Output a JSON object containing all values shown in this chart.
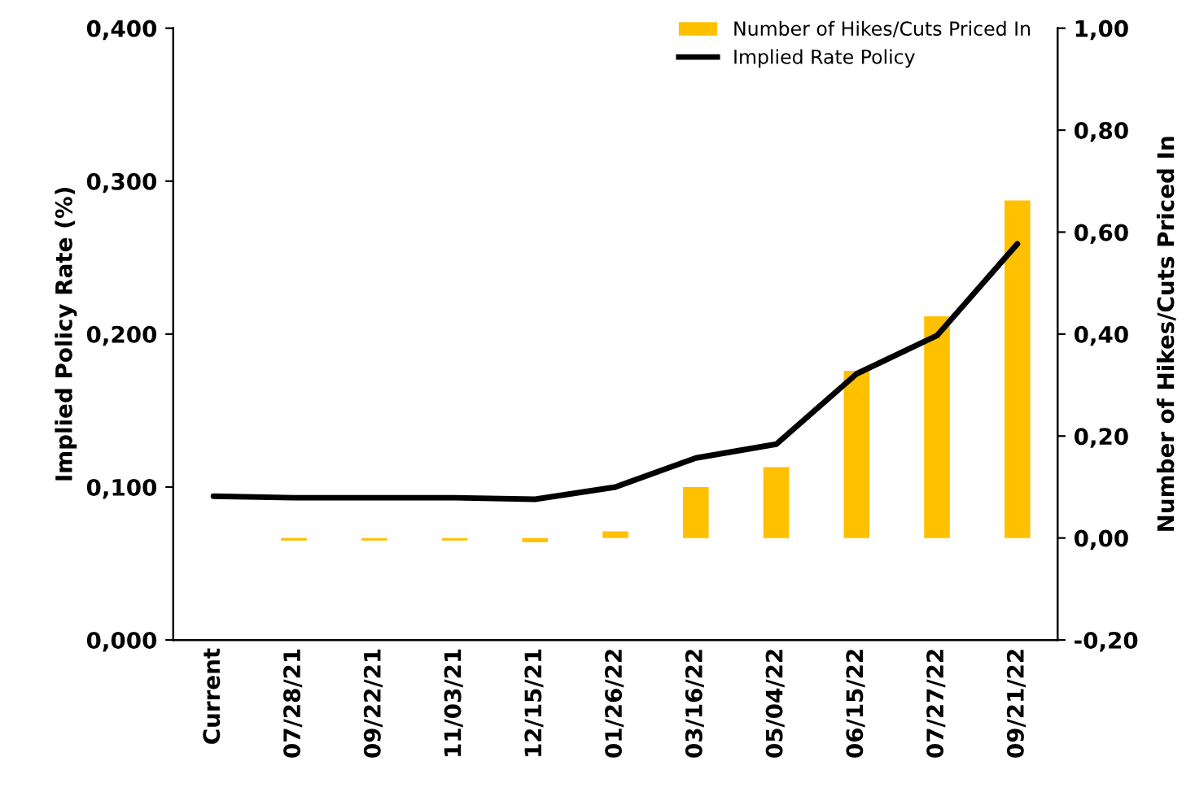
{
  "chart_data": {
    "type": "bar",
    "ylabel": "Implied Policy Rate (%)",
    "y2label": "Number of Hikes/Cuts Priced In",
    "categories": [
      "Current",
      "07/28/21",
      "09/22/21",
      "11/03/21",
      "12/15/21",
      "01/26/22",
      "03/16/22",
      "05/04/22",
      "06/15/22",
      "07/27/22",
      "09/21/22"
    ],
    "series": [
      {
        "name": "Number of Hikes/Cuts Priced In",
        "axis": "y2",
        "color": "#ffc000",
        "values": [
          null,
          -0.005,
          -0.005,
          -0.005,
          -0.008,
          0.013,
          0.1,
          0.139,
          0.328,
          0.435,
          0.662
        ]
      },
      {
        "name": "Implied Rate Policy",
        "type": "line",
        "axis": "y",
        "color": "#000000",
        "values": [
          0.094,
          0.093,
          0.093,
          0.093,
          0.092,
          0.1,
          0.119,
          0.128,
          0.174,
          0.199,
          0.259
        ]
      }
    ],
    "ylim": [
      0,
      0.4
    ],
    "yticks": [
      {
        "value": 0,
        "label": "0,000"
      },
      {
        "value": 0.1,
        "label": "0,100"
      },
      {
        "value": 0.2,
        "label": "0,200"
      },
      {
        "value": 0.3,
        "label": "0,300"
      },
      {
        "value": 0.4,
        "label": "0,400"
      }
    ],
    "y2lim": [
      -0.2,
      1.0
    ],
    "y2ticks": [
      {
        "value": -0.2,
        "label": "-0,20"
      },
      {
        "value": 0,
        "label": "0,00"
      },
      {
        "value": 0.2,
        "label": "0,20"
      },
      {
        "value": 0.4,
        "label": "0,40"
      },
      {
        "value": 0.6,
        "label": "0,60"
      },
      {
        "value": 0.8,
        "label": "0,80"
      },
      {
        "value": 1.0,
        "label": "1,00"
      }
    ],
    "legend": "top right",
    "grid": false,
    "line_style": "solid",
    "marker": "none"
  }
}
